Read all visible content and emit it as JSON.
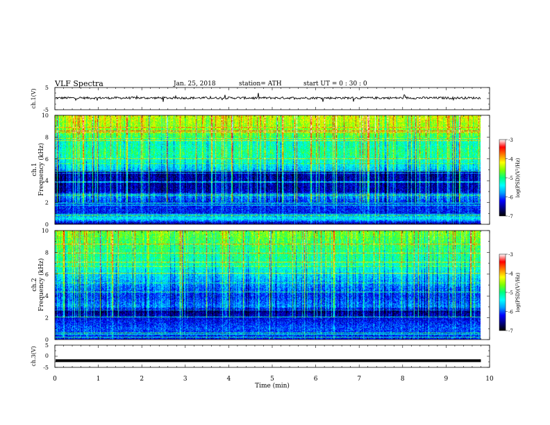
{
  "header": {
    "title": "VLF  Spectra",
    "date": "Jan. 25, 2018",
    "station": "station= ATH",
    "start": "start  UT  =   0 : 30 : 0"
  },
  "colors": {
    "ramp": [
      "#000000",
      "#000080",
      "#0000ff",
      "#00a0ff",
      "#00ffff",
      "#00ff80",
      "#80ff00",
      "#ffff00",
      "#ff8000",
      "#ff0000",
      "#ffffff"
    ],
    "trace": "#000000"
  },
  "chart_data": [
    {
      "type": "line",
      "panel": "ch1-waveform",
      "ylabel": "ch.1(V)",
      "ylim": [
        -5,
        5
      ],
      "yticks": [
        "5",
        "-5"
      ],
      "xlim": [
        0,
        10
      ],
      "x_end": 9.8,
      "level": 0.3,
      "noise_amplitude": 0.5
    },
    {
      "type": "heatmap",
      "panel": "ch1-spectrogram",
      "ylabel": "ch.1\nFrequency  (kHz)",
      "ylim": [
        0,
        10
      ],
      "yticks": [
        "0",
        "2",
        "4",
        "6",
        "8",
        "10"
      ],
      "xlim": [
        0,
        10
      ],
      "x_end": 9.8,
      "colorbar": {
        "label": "log(PSD)(V²/Hz)",
        "range": [
          -7,
          -3
        ],
        "ticks": [
          "-3",
          "-4",
          "-5",
          "-6",
          "-7"
        ]
      },
      "level_profile": [
        {
          "f": 0.0,
          "v": -6.6
        },
        {
          "f": 0.5,
          "v": -5.4
        },
        {
          "f": 1.0,
          "v": -6.2
        },
        {
          "f": 2.0,
          "v": -6.1
        },
        {
          "f": 2.6,
          "v": -5.8
        },
        {
          "f": 3.0,
          "v": -6.4
        },
        {
          "f": 4.8,
          "v": -6.5
        },
        {
          "f": 5.0,
          "v": -5.6
        },
        {
          "f": 6.5,
          "v": -5.0
        },
        {
          "f": 7.5,
          "v": -5.2
        },
        {
          "f": 8.5,
          "v": -4.6
        },
        {
          "f": 10.0,
          "v": -4.3
        }
      ]
    },
    {
      "type": "heatmap",
      "panel": "ch2-spectrogram",
      "ylabel": "ch.2\nFrequency  (kHz)",
      "ylim": [
        0,
        10
      ],
      "yticks": [
        "0",
        "2",
        "4",
        "6",
        "8",
        "10"
      ],
      "xlim": [
        0,
        10
      ],
      "x_end": 9.8,
      "colorbar": {
        "label": "log(PSD)(V²/Hz)",
        "range": [
          -7,
          -3
        ],
        "ticks": [
          "-3",
          "-4",
          "-5",
          "-6",
          "-7"
        ]
      },
      "level_profile": [
        {
          "f": 0.0,
          "v": -6.2
        },
        {
          "f": 1.0,
          "v": -6.0
        },
        {
          "f": 2.0,
          "v": -6.3
        },
        {
          "f": 2.6,
          "v": -6.6
        },
        {
          "f": 3.0,
          "v": -5.8
        },
        {
          "f": 4.0,
          "v": -6.1
        },
        {
          "f": 5.0,
          "v": -5.8
        },
        {
          "f": 6.0,
          "v": -5.5
        },
        {
          "f": 7.0,
          "v": -5.1
        },
        {
          "f": 8.0,
          "v": -5.0
        },
        {
          "f": 9.0,
          "v": -4.8
        },
        {
          "f": 10.0,
          "v": -4.6
        }
      ]
    },
    {
      "type": "line",
      "panel": "ch3-waveform",
      "ylabel": "ch.3(V)",
      "ylim": [
        -5,
        5
      ],
      "yticks": [
        "5",
        "0",
        "-5"
      ],
      "xlim": [
        0,
        10
      ],
      "x_end": 9.8,
      "level": -2.0,
      "noise_amplitude": 0.0,
      "xlabel": "Time  (min)",
      "xticks": [
        "0",
        "1",
        "2",
        "3",
        "4",
        "5",
        "6",
        "7",
        "8",
        "9",
        "10"
      ]
    }
  ]
}
